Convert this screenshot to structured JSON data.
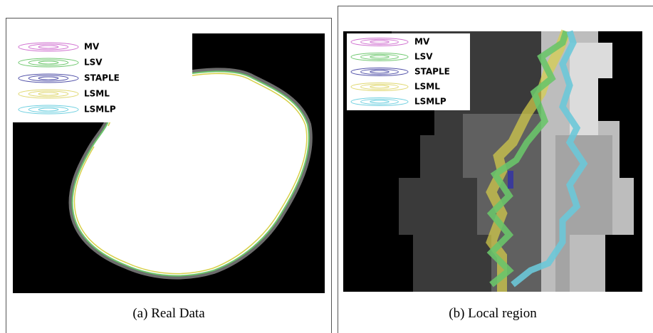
{
  "panels": [
    {
      "caption": "(a) Real Data",
      "legend": [
        "MV",
        "LSV",
        "STAPLE",
        "LSML",
        "LSMLP"
      ]
    },
    {
      "caption": "(b) Local region",
      "legend": [
        "MV",
        "LSV",
        "STAPLE",
        "LSML",
        "LSMLP"
      ]
    }
  ]
}
